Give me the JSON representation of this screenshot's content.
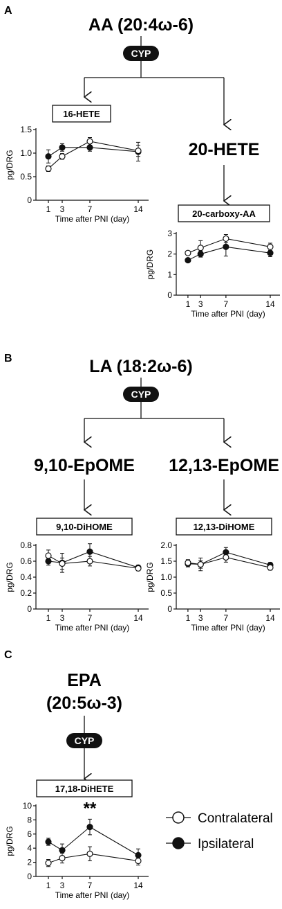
{
  "panels": {
    "A": {
      "letter": "A",
      "precursor": "AA (20:4ω-6)",
      "enzyme": "CYP",
      "product_right": "20-HETE"
    },
    "B": {
      "letter": "B",
      "precursor": "LA (18:2ω-6)",
      "enzyme": "CYP",
      "product_left": "9,10-EpOME",
      "product_right": "12,13-EpOME"
    },
    "C": {
      "letter": "C",
      "precursor_line1": "EPA",
      "precursor_line2": "(20:5ω-3)",
      "enzyme": "CYP"
    }
  },
  "legend": {
    "contralateral": "Contralateral",
    "ipsilateral": "Ipsilateral"
  },
  "chart_data": [
    {
      "type": "line",
      "title": "16-HETE",
      "xlabel": "Time after PNI (day)",
      "ylabel": "pg/DRG",
      "x": [
        1,
        3,
        7,
        14
      ],
      "ylim": [
        0,
        1.5
      ],
      "yticks": [
        "0",
        "0.5",
        "1.0",
        "1.5"
      ],
      "series": [
        {
          "name": "Contralateral",
          "values": [
            0.67,
            0.93,
            1.25,
            1.05
          ],
          "errors": [
            0.06,
            0.06,
            0.08,
            0.12
          ]
        },
        {
          "name": "Ipsilateral",
          "values": [
            0.93,
            1.12,
            1.12,
            1.03
          ],
          "errors": [
            0.14,
            0.08,
            0.08,
            0.2
          ]
        }
      ]
    },
    {
      "type": "line",
      "title": "20-carboxy-AA",
      "xlabel": "Time after PNI (day)",
      "ylabel": "pg/DRG",
      "x": [
        1,
        3,
        7,
        14
      ],
      "ylim": [
        0,
        3
      ],
      "yticks": [
        "0",
        "1",
        "2",
        "3"
      ],
      "series": [
        {
          "name": "Contralateral",
          "values": [
            2.05,
            2.3,
            2.75,
            2.35
          ],
          "errors": [
            0.08,
            0.35,
            0.2,
            0.18
          ]
        },
        {
          "name": "Ipsilateral",
          "values": [
            1.7,
            2.0,
            2.35,
            2.05
          ],
          "errors": [
            0.08,
            0.15,
            0.45,
            0.18
          ]
        }
      ]
    },
    {
      "type": "line",
      "title": "9,10-DiHOME",
      "xlabel": "Time after PNI (day)",
      "ylabel": "pg/DRG",
      "x": [
        1,
        3,
        7,
        14
      ],
      "ylim": [
        0,
        0.8
      ],
      "yticks": [
        "0",
        "0.2",
        "0.4",
        "0.6",
        "0.8"
      ],
      "series": [
        {
          "name": "Contralateral",
          "values": [
            0.67,
            0.57,
            0.6,
            0.51
          ],
          "errors": [
            0.07,
            0.07,
            0.06,
            0.03
          ]
        },
        {
          "name": "Ipsilateral",
          "values": [
            0.6,
            0.58,
            0.72,
            0.52
          ],
          "errors": [
            0.05,
            0.12,
            0.1,
            0.03
          ]
        }
      ]
    },
    {
      "type": "line",
      "title": "12,13-DiHOME",
      "xlabel": "Time after PNI (day)",
      "ylabel": "pg/DRG",
      "x": [
        1,
        3,
        7,
        14
      ],
      "ylim": [
        0,
        2.0
      ],
      "yticks": [
        "0",
        "0.5",
        "1.0",
        "1.5",
        "2.0"
      ],
      "series": [
        {
          "name": "Contralateral",
          "values": [
            1.45,
            1.4,
            1.62,
            1.3
          ],
          "errors": [
            0.1,
            0.2,
            0.15,
            0.08
          ]
        },
        {
          "name": "Ipsilateral",
          "values": [
            1.42,
            1.4,
            1.78,
            1.38
          ],
          "errors": [
            0.1,
            0.12,
            0.15,
            0.08
          ]
        }
      ]
    },
    {
      "type": "line",
      "title": "17,18-DiHETE",
      "xlabel": "Time after PNI (day)",
      "ylabel": "pg/DRG",
      "x": [
        1,
        3,
        7,
        14
      ],
      "ylim": [
        0,
        10
      ],
      "yticks": [
        "0",
        "2",
        "4",
        "6",
        "8",
        "10"
      ],
      "annotation": "**",
      "series": [
        {
          "name": "Contralateral",
          "values": [
            1.9,
            2.6,
            3.2,
            2.2
          ],
          "errors": [
            0.5,
            0.7,
            1.0,
            0.6
          ]
        },
        {
          "name": "Ipsilateral",
          "values": [
            4.9,
            3.7,
            7.0,
            3.0
          ],
          "errors": [
            0.5,
            0.9,
            1.1,
            0.9
          ]
        }
      ]
    }
  ]
}
